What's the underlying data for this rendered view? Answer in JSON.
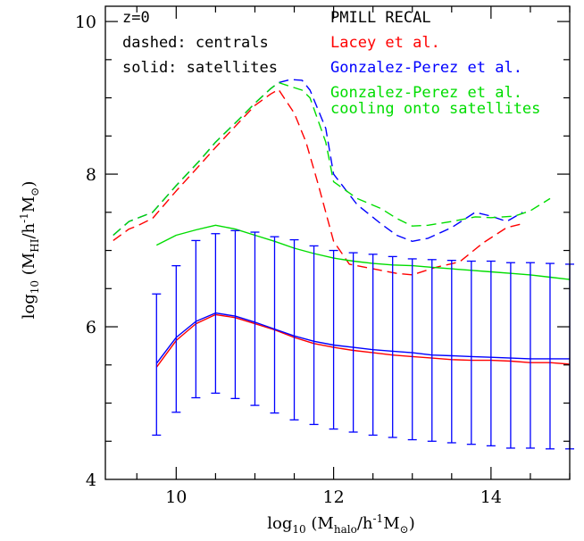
{
  "chart_data": {
    "type": "line",
    "xlim": [
      9.1,
      15.0
    ],
    "ylim": [
      4.0,
      10.2
    ],
    "xticks": [
      10,
      12,
      14
    ],
    "yticks": [
      4,
      6,
      8,
      10
    ],
    "xlabel": {
      "pre": "log",
      "sub1": "10",
      "mid": " (M",
      "sub2": "halo",
      "mid2": "/h",
      "sup": "-1",
      "post": "M",
      "sun": "⊙",
      "close": ")"
    },
    "ylabel": {
      "pre": "log",
      "sub1": "10",
      "mid": " (M",
      "sub2": "HI",
      "mid2": "/h",
      "sup": "-1",
      "post": "M",
      "sun": "⊙",
      "close": ")"
    },
    "annotations": {
      "left": [
        "z=0",
        "dashed: centrals",
        "solid: satellites"
      ],
      "right": [
        {
          "text": "PMILL RECAL",
          "color": "#000000"
        },
        {
          "text": "Lacey et al.",
          "color": "#ff0000"
        },
        {
          "text": "Gonzalez-Perez et al.",
          "color": "#0000ff"
        },
        {
          "text": "Gonzalez-Perez et al.",
          "color": "#00dd00"
        },
        {
          "text": "cooling onto satellites",
          "color": "#00dd00"
        }
      ]
    },
    "series": [
      {
        "model": "Lacey et al.",
        "population": "centrals",
        "style": "dashed",
        "color": "#ff0000",
        "x": [
          9.2,
          9.4,
          9.5,
          9.7,
          10.0,
          10.3,
          10.5,
          10.8,
          11.0,
          11.2,
          11.3,
          11.5,
          11.65,
          11.8,
          12.0,
          12.2,
          12.5,
          12.8,
          13.0,
          13.3,
          13.6,
          13.9,
          14.2,
          14.4
        ],
        "y": [
          7.13,
          7.28,
          7.32,
          7.42,
          7.78,
          8.12,
          8.35,
          8.68,
          8.9,
          9.05,
          9.11,
          8.8,
          8.42,
          7.88,
          7.12,
          6.82,
          6.76,
          6.7,
          6.68,
          6.78,
          6.85,
          7.1,
          7.3,
          7.35
        ]
      },
      {
        "model": "Gonzalez-Perez et al.",
        "population": "centrals",
        "style": "dashed",
        "color": "#0000ff",
        "x": [
          9.2,
          9.4,
          9.5,
          9.7,
          10.0,
          10.3,
          10.5,
          10.8,
          11.0,
          11.2,
          11.3,
          11.45,
          11.6,
          11.7,
          11.9,
          12.0,
          12.3,
          12.6,
          12.8,
          13.0,
          13.2,
          13.5,
          13.8,
          14.0,
          14.2,
          14.4
        ],
        "y": [
          7.2,
          7.38,
          7.42,
          7.5,
          7.85,
          8.18,
          8.42,
          8.72,
          8.93,
          9.12,
          9.2,
          9.24,
          9.23,
          9.1,
          8.6,
          8.0,
          7.6,
          7.35,
          7.2,
          7.12,
          7.16,
          7.3,
          7.5,
          7.45,
          7.38,
          7.5
        ]
      },
      {
        "model": "Gonzalez-Perez et al. cooling onto satellites",
        "population": "centrals",
        "style": "dashed",
        "color": "#00dd00",
        "x": [
          9.2,
          9.4,
          9.5,
          9.7,
          10.0,
          10.3,
          10.5,
          10.8,
          11.0,
          11.2,
          11.3,
          11.45,
          11.6,
          11.7,
          11.9,
          12.0,
          12.3,
          12.6,
          12.8,
          13.0,
          13.2,
          13.5,
          13.8,
          14.0,
          14.3,
          14.5,
          14.75
        ],
        "y": [
          7.2,
          7.38,
          7.42,
          7.5,
          7.85,
          8.18,
          8.42,
          8.72,
          8.93,
          9.12,
          9.2,
          9.15,
          9.1,
          9.0,
          8.42,
          7.9,
          7.68,
          7.55,
          7.42,
          7.32,
          7.33,
          7.38,
          7.44,
          7.43,
          7.45,
          7.52,
          7.68
        ]
      },
      {
        "model": "Lacey et al.",
        "population": "satellites",
        "style": "solid",
        "color": "#ff0000",
        "x": [
          9.75,
          10.0,
          10.25,
          10.5,
          10.75,
          11.0,
          11.25,
          11.5,
          11.75,
          12.0,
          12.25,
          12.5,
          12.75,
          13.0,
          13.25,
          13.5,
          13.75,
          14.0,
          14.25,
          14.5,
          14.75,
          15.0
        ],
        "y": [
          5.47,
          5.82,
          6.04,
          6.16,
          6.12,
          6.04,
          5.96,
          5.86,
          5.78,
          5.73,
          5.69,
          5.66,
          5.63,
          5.61,
          5.59,
          5.57,
          5.56,
          5.56,
          5.55,
          5.53,
          5.53,
          5.51
        ]
      },
      {
        "model": "Gonzalez-Perez et al.",
        "population": "satellites",
        "style": "solid",
        "color": "#0000ff",
        "x": [
          9.75,
          10.0,
          10.25,
          10.5,
          10.75,
          11.0,
          11.25,
          11.5,
          11.75,
          12.0,
          12.25,
          12.5,
          12.75,
          13.0,
          13.25,
          13.5,
          13.75,
          14.0,
          14.25,
          14.5,
          14.75,
          15.0
        ],
        "y": [
          5.52,
          5.86,
          6.07,
          6.18,
          6.14,
          6.06,
          5.97,
          5.88,
          5.81,
          5.76,
          5.73,
          5.7,
          5.68,
          5.66,
          5.63,
          5.62,
          5.61,
          5.6,
          5.59,
          5.58,
          5.58,
          5.58
        ]
      },
      {
        "model": "Gonzalez-Perez et al. cooling onto satellites",
        "population": "satellites",
        "style": "solid",
        "color": "#00dd00",
        "x": [
          9.75,
          10.0,
          10.25,
          10.5,
          10.75,
          11.0,
          11.25,
          11.5,
          11.75,
          12.0,
          12.25,
          12.5,
          12.75,
          13.0,
          13.25,
          13.5,
          13.75,
          14.0,
          14.25,
          14.5,
          14.75,
          15.0
        ],
        "y": [
          7.07,
          7.2,
          7.27,
          7.33,
          7.28,
          7.2,
          7.12,
          7.03,
          6.96,
          6.9,
          6.86,
          6.83,
          6.81,
          6.8,
          6.78,
          6.76,
          6.74,
          6.72,
          6.7,
          6.68,
          6.65,
          6.62
        ]
      }
    ],
    "errorbars": {
      "color": "#0000ff",
      "x": [
        9.75,
        10.0,
        10.25,
        10.5,
        10.75,
        11.0,
        11.25,
        11.5,
        11.75,
        12.0,
        12.25,
        12.5,
        12.75,
        13.0,
        13.25,
        13.5,
        13.75,
        14.0,
        14.25,
        14.5,
        14.75,
        15.0
      ],
      "low": [
        4.58,
        4.88,
        5.07,
        5.13,
        5.06,
        4.97,
        4.87,
        4.78,
        4.72,
        4.66,
        4.62,
        4.58,
        4.55,
        4.52,
        4.5,
        4.48,
        4.46,
        4.44,
        4.41,
        4.41,
        4.4,
        4.4
      ],
      "high": [
        6.43,
        6.8,
        7.13,
        7.22,
        7.26,
        7.24,
        7.18,
        7.14,
        7.06,
        7.0,
        6.97,
        6.95,
        6.92,
        6.89,
        6.88,
        6.87,
        6.86,
        6.86,
        6.84,
        6.84,
        6.83,
        6.82
      ]
    }
  }
}
